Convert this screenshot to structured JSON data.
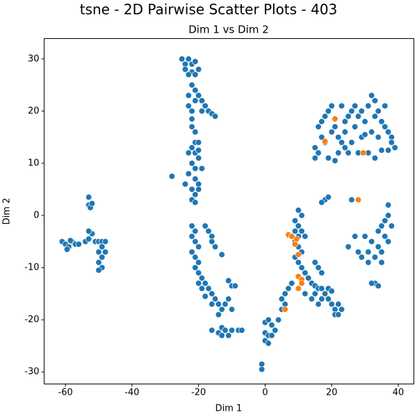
{
  "chart_data": {
    "type": "scatter",
    "suptitle": "tsne - 2D Pairwise Scatter Plots - 403",
    "title": "Dim 1 vs Dim 2",
    "x_label": "Dim 1",
    "y_label": "Dim 2",
    "xlim": [
      -66.4,
      44.7
    ],
    "ylim": [
      -32.3,
      33.9
    ],
    "xticks": [
      -60,
      -40,
      -20,
      0,
      20,
      40
    ],
    "yticks": [
      -30,
      -20,
      -10,
      0,
      10,
      20,
      30
    ],
    "grid": false,
    "series": [
      {
        "color": "#1f77b4",
        "x": [
          -61,
          -60,
          -59,
          -58,
          -57,
          -59.5,
          -58.5,
          -56,
          -54,
          -53,
          -52,
          -51,
          -53,
          -50,
          -49,
          -50,
          -49,
          -50,
          -49,
          -50,
          -48,
          -49,
          -48,
          -53,
          -52.5,
          -53,
          -52,
          -25,
          -24,
          -23,
          -22,
          -21,
          -24,
          -22,
          -23,
          -21,
          -20,
          -22,
          -21,
          -20,
          -19,
          -21,
          -18,
          -19,
          -17,
          -16,
          -15,
          -23,
          -23,
          -22,
          -22,
          -22,
          -21,
          -21,
          -20,
          -22,
          -21,
          -20,
          -22,
          -21,
          -19,
          -23,
          -21,
          -20,
          -22,
          -20,
          -21,
          -22,
          -21,
          -24,
          -28,
          -23,
          -20,
          -22,
          -21,
          -22,
          -21,
          -20,
          -22,
          -21,
          -20,
          -21,
          -20,
          -19,
          -20,
          -18,
          -19,
          -17,
          -16,
          -18,
          -15,
          -14,
          -16,
          -18,
          -17,
          -16,
          -16,
          -15,
          -13,
          -13,
          -12,
          -14,
          -11,
          -10,
          -11,
          -10,
          -9,
          -16,
          -14,
          -13,
          -12,
          -11,
          -10,
          -8,
          -7,
          -13,
          0,
          1,
          2,
          0,
          1,
          0,
          1,
          2,
          3,
          4,
          -1,
          -1,
          5,
          6,
          7,
          8,
          6,
          5,
          9,
          10,
          9,
          10,
          11,
          9,
          10,
          11,
          12,
          9,
          10,
          11,
          12,
          10,
          11,
          13,
          14,
          15,
          16,
          17,
          18,
          19,
          20,
          15,
          17,
          14,
          16,
          19,
          12,
          20,
          21,
          22,
          21,
          22,
          23,
          16,
          15,
          17,
          18,
          17,
          19,
          30,
          32,
          34,
          35,
          36,
          37,
          38,
          36,
          34,
          33,
          35,
          37,
          31,
          29,
          28,
          27,
          25,
          33,
          34,
          32,
          37,
          35,
          31,
          26,
          15,
          16,
          17,
          18,
          19,
          20,
          21,
          22,
          23,
          24,
          25,
          26,
          27,
          28,
          29,
          30,
          31,
          32,
          33,
          34,
          35,
          36,
          37,
          38,
          39,
          38,
          34,
          31,
          33,
          28,
          24,
          22,
          21,
          19,
          18,
          16,
          15,
          20,
          23,
          26,
          29,
          32,
          36,
          17,
          24,
          27,
          30,
          35,
          25,
          37,
          33
        ],
        "values": [
          -5,
          -5.5,
          -6,
          -5,
          -5.5,
          -6.5,
          -4.8,
          -5.5,
          -5,
          -4.5,
          -3.5,
          -5,
          -3,
          -5,
          -5,
          -7,
          -8,
          -9,
          -10,
          -10.5,
          -7,
          -6,
          -5,
          2,
          1.5,
          3.5,
          2.3,
          30,
          29,
          30,
          29,
          29.5,
          28,
          27.5,
          27,
          27,
          28,
          25,
          24,
          23,
          22,
          22,
          21,
          20,
          20,
          19.5,
          19,
          23,
          21,
          20,
          18.5,
          17,
          16,
          14,
          14,
          13,
          12,
          11,
          10,
          9,
          9,
          8,
          7,
          6,
          5,
          5,
          4,
          3,
          2.5,
          6,
          7.5,
          12,
          12.5,
          -2,
          -3,
          -4,
          -5,
          -6,
          -7,
          -8,
          -9,
          -10,
          -11,
          -12,
          -13,
          -13,
          -14,
          -14,
          -15,
          -15.5,
          -16,
          -17,
          -17,
          -2,
          -3,
          -4,
          -5,
          -6,
          -7.5,
          -18,
          -17,
          -19,
          -16,
          -18,
          -12.5,
          -13.5,
          -13.5,
          -22,
          -22.5,
          -21.5,
          -22,
          -23,
          -22,
          -22,
          -22,
          -23,
          -20.5,
          -20,
          -21,
          -22.5,
          -23,
          -24,
          -24.5,
          -23,
          -22,
          -20,
          -28.5,
          -29.5,
          -16,
          -15,
          -14,
          -13,
          -17,
          -18,
          -1,
          -2,
          -3,
          -4,
          -3,
          -5,
          -6,
          -7,
          -4,
          -8,
          -9,
          -10,
          -11,
          1,
          0,
          -12,
          -13,
          -13.5,
          -14,
          -14,
          -15,
          -14,
          -14.5,
          -15,
          -16,
          -16,
          -17,
          -16,
          -15,
          -17,
          -18,
          -17,
          -19,
          -19,
          -18,
          -10,
          -9,
          -11,
          3,
          2.5,
          3.5,
          -4,
          -5,
          -3,
          -2,
          -1,
          0,
          -2,
          -4,
          -6,
          -8,
          -7,
          -5,
          -7,
          -8,
          -7,
          -4,
          -6,
          -13,
          -13.5,
          -13,
          2,
          -9,
          -9,
          3,
          13,
          17,
          18,
          19,
          20,
          16,
          17,
          15,
          14,
          18,
          19,
          20,
          17,
          19,
          20,
          18,
          21,
          23,
          22,
          20,
          18,
          21,
          16,
          15,
          13,
          14,
          15,
          12,
          11,
          12,
          13,
          12,
          10.5,
          11,
          14,
          12,
          11,
          21,
          21,
          14,
          15,
          16,
          17,
          15,
          16,
          21,
          15.5,
          12.5,
          12,
          12.5,
          19
        ]
      },
      {
        "color": "#ff7f0e",
        "x": [
          21,
          18,
          29.5,
          28,
          7,
          9,
          10,
          10,
          11,
          11,
          10,
          6,
          9.5,
          8
        ],
        "values": [
          18.5,
          14.2,
          12,
          3,
          -3.7,
          -5.5,
          -7.5,
          -11.7,
          -12.3,
          -13,
          -14,
          -18,
          -4.5,
          -4
        ]
      }
    ]
  }
}
